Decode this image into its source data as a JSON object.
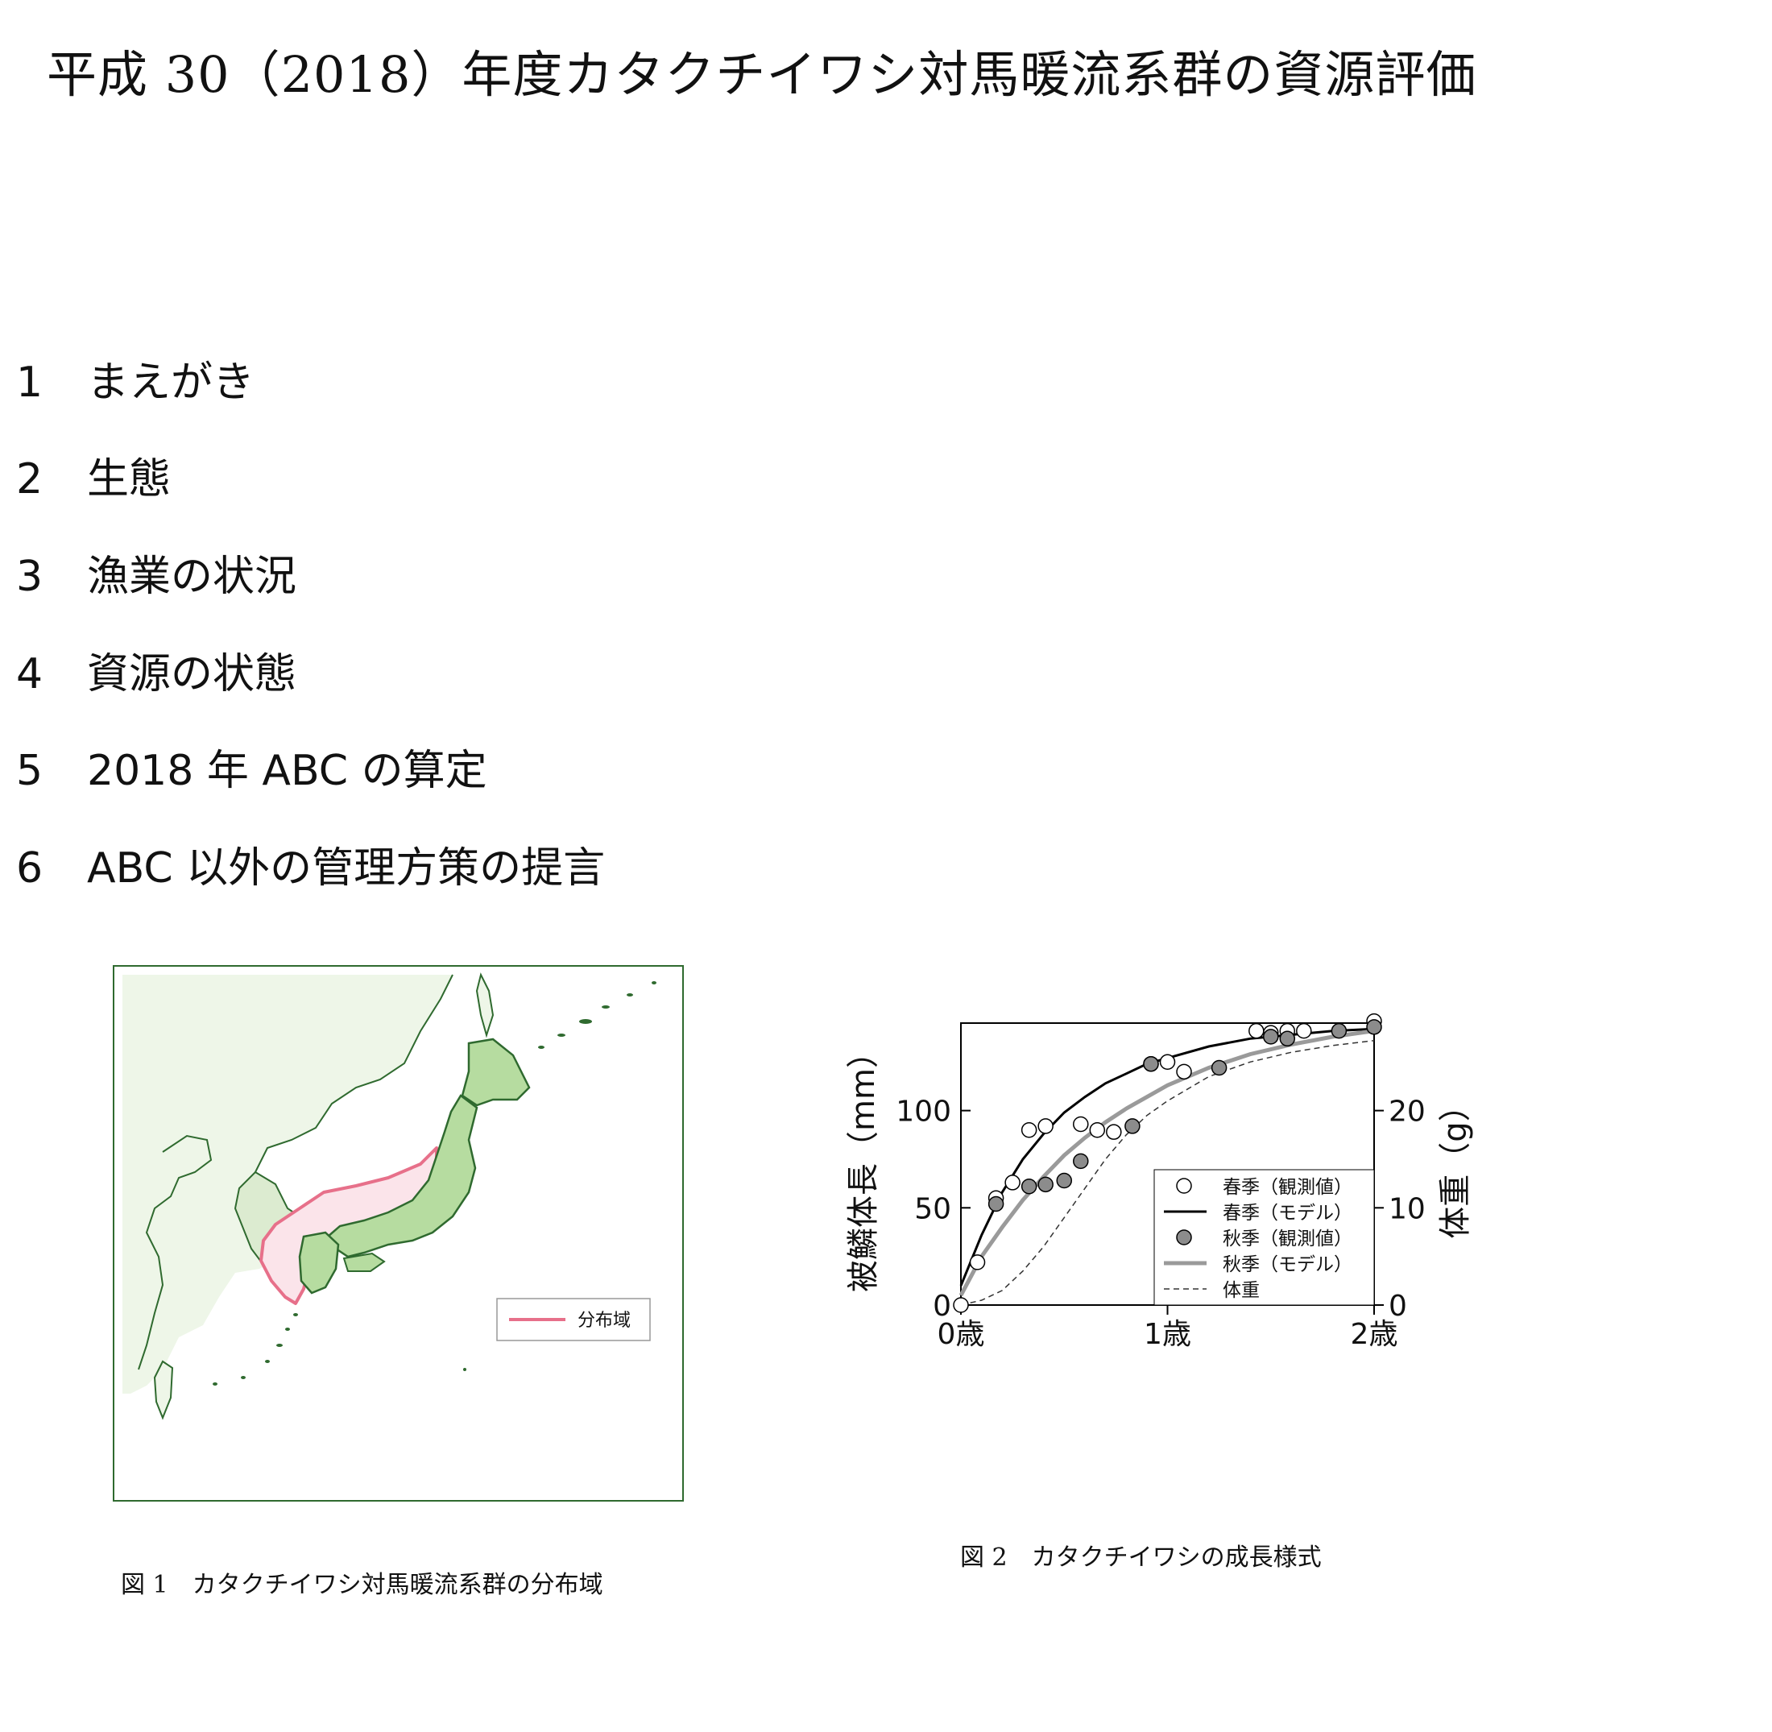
{
  "document": {
    "title": "平成 30（2018）年度カタクチイワシ対馬暖流系群の資源評価",
    "toc": [
      {
        "num": "1",
        "label": "まえがき"
      },
      {
        "num": "2",
        "label": "生態"
      },
      {
        "num": "3",
        "label": "漁業の状況"
      },
      {
        "num": "4",
        "label": "資源の状態"
      },
      {
        "num": "5",
        "label": "2018 年 ABC の算定"
      },
      {
        "num": "6",
        "label": "ABC 以外の管理方策の提言"
      }
    ]
  },
  "figure1": {
    "caption": "図 1　カタクチイワシ対馬暖流系群の分布域",
    "legend_label": "分布域",
    "colors": {
      "land": "#e6f2dc",
      "japan": "#b6dca0",
      "coast": "#2f6a2f",
      "distribution": "#e7708a"
    }
  },
  "figure2": {
    "caption": "図 2　カタクチイワシの成長様式",
    "chart_data": {
      "type": "scatter",
      "xlabel": "",
      "ylabel": "被鱗体長（mm）",
      "y2label": "体重（g）",
      "x_ticks": [
        "0歳",
        "1歳",
        "2歳"
      ],
      "xlim": [
        0,
        2
      ],
      "ylim": [
        0,
        145
      ],
      "y2lim": [
        0,
        29
      ],
      "y_ticks": [
        0,
        50,
        100
      ],
      "y2_ticks": [
        0,
        10,
        20
      ],
      "series": [
        {
          "name": "春季（観測値）",
          "kind": "points",
          "fill": "#ffffff",
          "points": [
            [
              0,
              0
            ],
            [
              0.08,
              22
            ],
            [
              0.17,
              55
            ],
            [
              0.25,
              63
            ],
            [
              0.33,
              90
            ],
            [
              0.41,
              92
            ],
            [
              0.58,
              93
            ],
            [
              0.66,
              90
            ],
            [
              0.74,
              89
            ],
            [
              0.92,
              124
            ],
            [
              1.0,
              125
            ],
            [
              1.08,
              120
            ],
            [
              1.43,
              141
            ],
            [
              1.5,
              140
            ],
            [
              1.58,
              141
            ],
            [
              1.66,
              141
            ],
            [
              2.0,
              146
            ]
          ]
        },
        {
          "name": "春季（モデル）",
          "kind": "line",
          "color": "#000000",
          "width": 3,
          "points": [
            [
              0,
              10
            ],
            [
              0.1,
              36
            ],
            [
              0.2,
              58
            ],
            [
              0.3,
              75
            ],
            [
              0.4,
              88
            ],
            [
              0.5,
              99
            ],
            [
              0.6,
              107
            ],
            [
              0.7,
              114
            ],
            [
              0.8,
              119
            ],
            [
              0.9,
              124
            ],
            [
              1.0,
              127
            ],
            [
              1.2,
              133
            ],
            [
              1.4,
              137
            ],
            [
              1.6,
              139
            ],
            [
              1.8,
              141
            ],
            [
              2.0,
              142
            ]
          ]
        },
        {
          "name": "秋季（観測値）",
          "kind": "points",
          "fill": "#8c8c8c",
          "points": [
            [
              0.17,
              52
            ],
            [
              0.33,
              61
            ],
            [
              0.41,
              62
            ],
            [
              0.5,
              64
            ],
            [
              0.58,
              74
            ],
            [
              0.83,
              92
            ],
            [
              0.92,
              124
            ],
            [
              1.25,
              122
            ],
            [
              1.5,
              138
            ],
            [
              1.58,
              137
            ],
            [
              1.83,
              141
            ],
            [
              2.0,
              143
            ]
          ]
        },
        {
          "name": "秋季（モデル）",
          "kind": "line",
          "color": "#9a9a9a",
          "width": 5,
          "points": [
            [
              0,
              5
            ],
            [
              0.1,
              25
            ],
            [
              0.2,
              40
            ],
            [
              0.3,
              54
            ],
            [
              0.4,
              66
            ],
            [
              0.5,
              77
            ],
            [
              0.6,
              86
            ],
            [
              0.7,
              94
            ],
            [
              0.8,
              101
            ],
            [
              0.9,
              107
            ],
            [
              1.0,
              113
            ],
            [
              1.2,
              122
            ],
            [
              1.4,
              129
            ],
            [
              1.6,
              134
            ],
            [
              1.8,
              138
            ],
            [
              2.0,
              141
            ]
          ]
        },
        {
          "name": "体重",
          "kind": "line",
          "color": "#333333",
          "width": 1.5,
          "dash": "7,5",
          "axis": "y2",
          "points": [
            [
              0,
              0
            ],
            [
              0.1,
              0.5
            ],
            [
              0.2,
              1.5
            ],
            [
              0.3,
              3.5
            ],
            [
              0.4,
              6
            ],
            [
              0.5,
              9
            ],
            [
              0.6,
              12
            ],
            [
              0.7,
              15
            ],
            [
              0.8,
              17.5
            ],
            [
              0.9,
              19.5
            ],
            [
              1.0,
              21
            ],
            [
              1.2,
              23.5
            ],
            [
              1.4,
              25
            ],
            [
              1.6,
              26
            ],
            [
              1.8,
              26.7
            ],
            [
              2.0,
              27.2
            ]
          ]
        }
      ],
      "legend_position": "bottom-right"
    }
  }
}
